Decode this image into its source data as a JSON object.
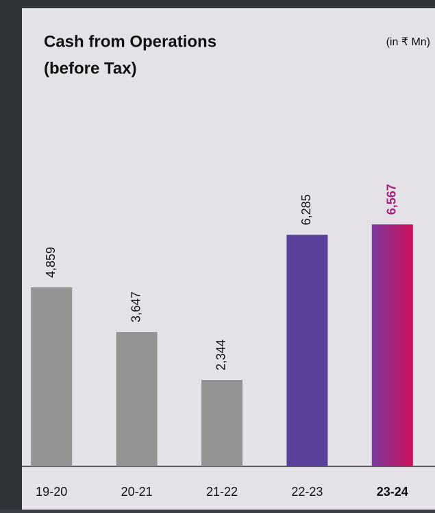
{
  "chart_data": {
    "type": "bar",
    "title": [
      "Cash from Operations",
      "(before Tax)"
    ],
    "subtitle": "(in ₹ Mn)",
    "categories": [
      "19-20",
      "20-21",
      "21-22",
      "22-23",
      "23-24"
    ],
    "values": [
      4859,
      3647,
      2344,
      6285,
      6567
    ],
    "value_labels": [
      "4,859",
      "3,647",
      "2,344",
      "6,285",
      "6,567"
    ],
    "colors": [
      "#949494",
      "#949494",
      "#949494",
      "#5a3f9b",
      [
        "#7b3a9f",
        "#d0105a"
      ]
    ],
    "highlight_index": 4,
    "highlight_label_color": "#a3247f",
    "ylim": [
      0,
      7000
    ]
  }
}
